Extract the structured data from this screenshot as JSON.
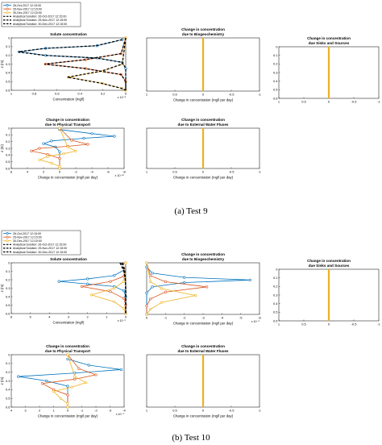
{
  "captions": [
    "(a) Test 9",
    "(b) Test 10"
  ],
  "colors": {
    "oct": "#0072bd",
    "nov": "#d95319",
    "dec": "#edb120",
    "analytical": "#000000"
  },
  "legend_entries": [
    "26-Oct-2017 12:15:00",
    "25-Nov-2017 12:15:00",
    "30-Dec-2017 12:15:00",
    "Analytical Solution: 26-Oct-2017 12:15:00",
    "Analytical Solution: 25-Nov-2017 12:15:00",
    "Analytical Solution: 30-Dec-2017 12:15:00"
  ],
  "chart_data": [
    {
      "type": "line",
      "figure": "Test 9",
      "title": [
        "Solute concentration"
      ],
      "xlabel": "Concentration (mg/l)",
      "ylabel": "z (m)",
      "xlim": [
        1,
        0
      ],
      "xticks": [
        "1",
        "0.8",
        "0.6",
        "0.4",
        "0.2",
        "0"
      ],
      "exponent": "x 10⁻⁸",
      "ylim": [
        0,
        0.6
      ],
      "yticks": [
        "0",
        "0.1",
        "0.2",
        "0.3",
        "0.4",
        "0.5",
        "0.6"
      ],
      "series": [
        {
          "name": "26-Oct-2017 12:15:00",
          "style": "marker",
          "color": "#0072bd",
          "x": [
            0.03,
            0.25,
            0.7,
            0.93,
            0.7,
            0.25,
            0.03,
            0,
            0
          ],
          "y": [
            0.02,
            0.09,
            0.12,
            0.16,
            0.2,
            0.23,
            0.28,
            0.35,
            0.6
          ]
        },
        {
          "name": "25-Nov-2017 12:15:00",
          "style": "marker",
          "color": "#d95319",
          "x": [
            0,
            0.04,
            0.35,
            0.7,
            0.35,
            0.04,
            0,
            0
          ],
          "y": [
            0,
            0.18,
            0.25,
            0.3,
            0.35,
            0.42,
            0.5,
            0.6
          ]
        },
        {
          "name": "30-Dec-2017 12:15:00",
          "style": "marker",
          "color": "#edb120",
          "x": [
            0,
            0.03,
            0.2,
            0.5,
            0.2,
            0.03,
            0
          ],
          "y": [
            0,
            0.3,
            0.38,
            0.45,
            0.52,
            0.58,
            0.6
          ]
        },
        {
          "name": "Analytical Solution: 26-Oct-2017 12:15:00",
          "style": "dash",
          "color": "#000000",
          "x": [
            0.03,
            0.26,
            0.71,
            0.94,
            0.71,
            0.26,
            0.03,
            0,
            0
          ],
          "y": [
            0.02,
            0.09,
            0.12,
            0.16,
            0.2,
            0.23,
            0.28,
            0.35,
            0.6
          ]
        },
        {
          "name": "Analytical Solution: 25-Nov-2017 12:15:00",
          "style": "dash",
          "color": "#000000",
          "x": [
            0,
            0.04,
            0.36,
            0.71,
            0.36,
            0.04,
            0,
            0
          ],
          "y": [
            0,
            0.18,
            0.25,
            0.3,
            0.35,
            0.42,
            0.5,
            0.6
          ]
        },
        {
          "name": "Analytical Solution: 30-Dec-2017 12:15:00",
          "style": "dash",
          "color": "#000000",
          "x": [
            0,
            0.03,
            0.21,
            0.51,
            0.21,
            0.03,
            0
          ],
          "y": [
            0,
            0.3,
            0.38,
            0.45,
            0.52,
            0.58,
            0.6
          ]
        }
      ]
    },
    {
      "type": "line",
      "figure": "Test 9",
      "title": [
        "Change in concentration",
        "due to Biogeochemistry"
      ],
      "xlabel": "Change in concentration (mg/l per day)",
      "ylabel": "",
      "xlim": [
        1,
        -1
      ],
      "xticks": [
        "1",
        "0.5",
        "0",
        "-0.5",
        "-1"
      ],
      "exponent": "",
      "ylim": [
        0,
        0.6
      ],
      "yticks": [],
      "series": [
        {
          "style": "vline",
          "color": "#edb120",
          "x": [
            0,
            0
          ],
          "y": [
            0,
            0.6
          ]
        }
      ]
    },
    {
      "type": "line",
      "figure": "Test 9",
      "title": [
        "Change in concentration",
        "due Sinks and Sources"
      ],
      "xlabel": "",
      "ylabel": "",
      "xlim": [
        1,
        -1
      ],
      "xticks": [
        "1",
        "0.5",
        "0",
        "-0.5",
        "-1"
      ],
      "exponent": "",
      "ylim": [
        0,
        0.6
      ],
      "yticks": [
        "0",
        "0.1",
        "0.2",
        "0.3",
        "0.4",
        "0.5",
        "0.6"
      ],
      "series": [
        {
          "style": "vline",
          "color": "#edb120",
          "x": [
            0,
            0
          ],
          "y": [
            0,
            0.6
          ]
        }
      ]
    },
    {
      "type": "line",
      "figure": "Test 9",
      "title": [
        "Change in concentration",
        "due to Physical Transport"
      ],
      "xlabel": "Change in concentration (mg/l per day)",
      "ylabel": "z (m)",
      "xlim": [
        6,
        -8
      ],
      "xticks": [
        "6",
        "4",
        "2",
        "0",
        "-2",
        "-4",
        "-6",
        "-8"
      ],
      "exponent": "x 10⁻¹⁰",
      "ylim": [
        0,
        0.6
      ],
      "yticks": [
        "0",
        "0.1",
        "0.2",
        "0.3",
        "0.4",
        "0.5",
        "0.6"
      ],
      "series": [
        {
          "name": "26-Oct-2017 12:15:00",
          "style": "marker",
          "color": "#0072bd",
          "x": [
            0,
            -4,
            -6.8,
            -3,
            1,
            2,
            0.5,
            0,
            0
          ],
          "y": [
            0.02,
            0.08,
            0.12,
            0.15,
            0.19,
            0.23,
            0.28,
            0.35,
            0.6
          ]
        },
        {
          "name": "25-Nov-2017 12:15:00",
          "style": "marker",
          "color": "#d95319",
          "x": [
            0,
            -1.5,
            -3.5,
            -1,
            2.5,
            3.5,
            1.5,
            0,
            0
          ],
          "y": [
            0,
            0.18,
            0.24,
            0.27,
            0.3,
            0.34,
            0.39,
            0.45,
            0.6
          ]
        },
        {
          "name": "30-Dec-2017 12:15:00",
          "style": "marker",
          "color": "#edb120",
          "x": [
            0,
            -1,
            -2,
            -0.5,
            1.5,
            2.5,
            1,
            0,
            0
          ],
          "y": [
            0,
            0.28,
            0.34,
            0.38,
            0.42,
            0.47,
            0.52,
            0.57,
            0.6
          ]
        }
      ]
    },
    {
      "type": "line",
      "figure": "Test 9",
      "title": [
        "Change in concentration",
        "due to External Water Fluxes"
      ],
      "xlabel": "Change in concentration (mg/l per day)",
      "ylabel": "",
      "xlim": [
        1,
        -1
      ],
      "xticks": [
        "1",
        "0.5",
        "0",
        "-0.5",
        "-1"
      ],
      "exponent": "",
      "ylim": [
        0,
        0.6
      ],
      "yticks": [],
      "series": [
        {
          "style": "vline",
          "color": "#edb120",
          "x": [
            0,
            0
          ],
          "y": [
            0,
            0.6
          ]
        }
      ]
    },
    {
      "type": "line",
      "figure": "Test 10",
      "title": [
        "Solute concentration"
      ],
      "xlabel": "Concentration (mg/l)",
      "ylabel": "z (m)",
      "xlim": [
        6,
        0
      ],
      "xticks": [
        "6",
        "5",
        "4",
        "3",
        "2",
        "1",
        "0"
      ],
      "exponent": "x 10⁻⁹",
      "ylim": [
        0,
        0.6
      ],
      "yticks": [
        "0",
        "0.1",
        "0.2",
        "0.3",
        "0.4",
        "0.5",
        "0.6"
      ],
      "series": [
        {
          "name": "26-Oct-2017 12:15:00",
          "style": "marker",
          "color": "#0072bd",
          "x": [
            0.05,
            0.6,
            2,
            3.5,
            2,
            0.6,
            0.1,
            0,
            0
          ],
          "y": [
            0.08,
            0.15,
            0.19,
            0.22,
            0.25,
            0.28,
            0.33,
            0.4,
            0.6
          ]
        },
        {
          "name": "25-Nov-2017 12:15:00",
          "style": "marker",
          "color": "#d95319",
          "x": [
            0,
            0.1,
            0.8,
            2.3,
            0.8,
            0.1,
            0,
            0
          ],
          "y": [
            0,
            0.16,
            0.22,
            0.28,
            0.34,
            0.42,
            0.5,
            0.6
          ]
        },
        {
          "name": "30-Dec-2017 12:15:00",
          "style": "marker",
          "color": "#edb120",
          "x": [
            0,
            0.1,
            0.6,
            1.8,
            0.6,
            0.1,
            0
          ],
          "y": [
            0,
            0.22,
            0.3,
            0.38,
            0.46,
            0.54,
            0.6
          ]
        },
        {
          "name": "Analytical Solution: 26-Oct-2017 12:15:00",
          "style": "dash",
          "color": "#000000",
          "x": [
            0.3,
            0.1,
            0.02,
            0,
            0
          ],
          "y": [
            0,
            0.1,
            0.2,
            0.3,
            0.6
          ]
        },
        {
          "name": "Analytical Solution: 25-Nov-2017 12:15:00",
          "style": "dash",
          "color": "#000000",
          "x": [
            0.22,
            0.08,
            0.02,
            0,
            0
          ],
          "y": [
            0,
            0.1,
            0.2,
            0.3,
            0.6
          ]
        },
        {
          "name": "Analytical Solution: 30-Dec-2017 12:15:00",
          "style": "dash",
          "color": "#000000",
          "x": [
            0.15,
            0.05,
            0.01,
            0,
            0
          ],
          "y": [
            0,
            0.1,
            0.2,
            0.3,
            0.6
          ]
        }
      ]
    },
    {
      "type": "line",
      "figure": "Test 10",
      "title": [
        "Change in concentration",
        "due to Biogeochemistry"
      ],
      "xlabel": "Change in concentration (mg/l per day)",
      "ylabel": "",
      "xlim": [
        0,
        -6
      ],
      "xticks": [
        "0",
        "-1",
        "-2",
        "-3",
        "-4",
        "-5",
        "-6"
      ],
      "exponent": "x 10⁻⁹",
      "ylim": [
        0,
        0.6
      ],
      "yticks": [],
      "series": [
        {
          "name": "26-Oct-2017 12:15:00",
          "style": "marker",
          "color": "#0072bd",
          "x": [
            0,
            -0.3,
            -2,
            -5.5,
            -2,
            -0.3,
            0,
            0
          ],
          "y": [
            0.05,
            0.12,
            0.17,
            0.2,
            0.23,
            0.28,
            0.35,
            0.6
          ]
        },
        {
          "name": "25-Nov-2017 12:15:00",
          "style": "marker",
          "color": "#d95319",
          "x": [
            0,
            -0.2,
            -1,
            -3.2,
            -1,
            -0.2,
            0,
            0
          ],
          "y": [
            0,
            0.15,
            0.22,
            0.28,
            0.34,
            0.42,
            0.5,
            0.6
          ]
        },
        {
          "name": "30-Dec-2017 12:15:00",
          "style": "marker",
          "color": "#edb120",
          "x": [
            0,
            -0.2,
            -0.8,
            -2.6,
            -0.8,
            -0.2,
            0
          ],
          "y": [
            0,
            0.22,
            0.3,
            0.38,
            0.46,
            0.54,
            0.6
          ]
        }
      ]
    },
    {
      "type": "line",
      "figure": "Test 10",
      "title": [
        "Change in concentration",
        "due Sinks and Sources"
      ],
      "xlabel": "",
      "ylabel": "",
      "xlim": [
        1,
        -1
      ],
      "xticks": [
        "1",
        "0.5",
        "0",
        "-0.5",
        "-1"
      ],
      "exponent": "",
      "ylim": [
        0,
        0.6
      ],
      "yticks": [
        "0",
        "0.1",
        "0.2",
        "0.3",
        "0.4",
        "0.5",
        "0.6"
      ],
      "series": [
        {
          "style": "vline",
          "color": "#edb120",
          "x": [
            0,
            0
          ],
          "y": [
            0,
            0.6
          ]
        }
      ]
    },
    {
      "type": "line",
      "figure": "Test 10",
      "title": [
        "Change in concentration",
        "due to Physical Transport"
      ],
      "xlabel": "Change in concentration (mg/l per day)",
      "ylabel": "z (m)",
      "xlim": [
        4,
        -4
      ],
      "xticks": [
        "4",
        "3",
        "2",
        "1",
        "0",
        "-1",
        "-2",
        "-3",
        "-4"
      ],
      "exponent": "x 10⁻⁹",
      "ylim": [
        0,
        0.6
      ],
      "yticks": [
        "0",
        "0.1",
        "0.2",
        "0.3",
        "0.4",
        "0.5",
        "0.6"
      ],
      "series": [
        {
          "name": "26-Oct-2017 12:15:00",
          "style": "marker",
          "color": "#0072bd",
          "x": [
            0,
            -1.5,
            -3.8,
            -0.5,
            3.5,
            1.5,
            0,
            0
          ],
          "y": [
            0.05,
            0.12,
            0.17,
            0.21,
            0.25,
            0.3,
            0.36,
            0.6
          ]
        },
        {
          "name": "25-Nov-2017 12:15:00",
          "style": "marker",
          "color": "#d95319",
          "x": [
            0,
            -0.8,
            -2,
            -0.5,
            1.8,
            1,
            0,
            0
          ],
          "y": [
            0,
            0.16,
            0.23,
            0.28,
            0.33,
            0.4,
            0.46,
            0.6
          ]
        },
        {
          "name": "30-Dec-2017 12:15:00",
          "style": "marker",
          "color": "#edb120",
          "x": [
            0,
            -0.5,
            -1.3,
            -0.3,
            1,
            0.5,
            0,
            0
          ],
          "y": [
            0,
            0.25,
            0.32,
            0.37,
            0.42,
            0.5,
            0.56,
            0.6
          ]
        }
      ]
    },
    {
      "type": "line",
      "figure": "Test 10",
      "title": [
        "Change in concentration",
        "due to External Water Fluxes"
      ],
      "xlabel": "Change in concentration (mg/l per day)",
      "ylabel": "",
      "xlim": [
        1,
        -1
      ],
      "xticks": [
        "1",
        "0.5",
        "0",
        "-0.5",
        "-1"
      ],
      "exponent": "",
      "ylim": [
        0,
        0.6
      ],
      "yticks": [],
      "series": [
        {
          "style": "vline",
          "color": "#edb120",
          "x": [
            0,
            0
          ],
          "y": [
            0,
            0.6
          ]
        }
      ]
    }
  ]
}
